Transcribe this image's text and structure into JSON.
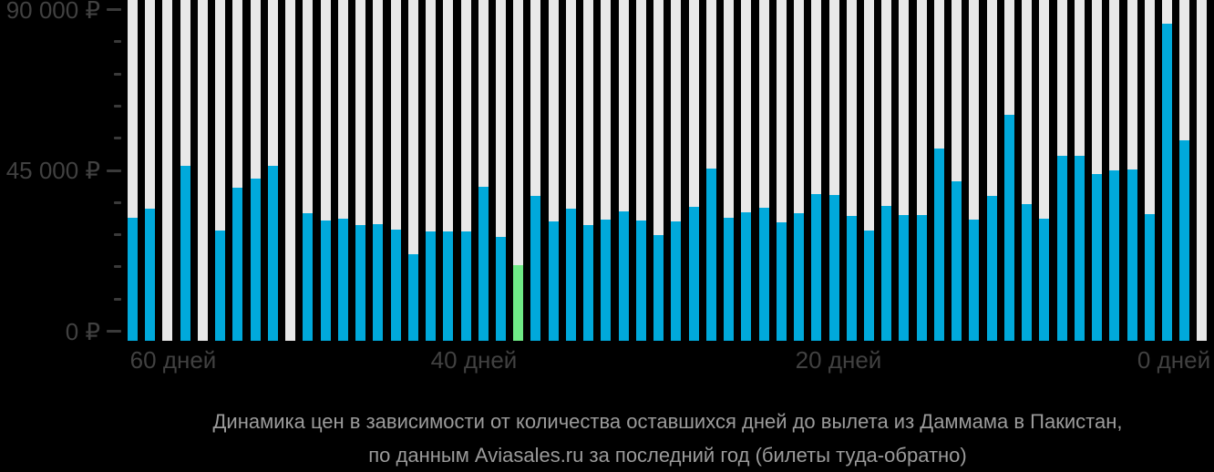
{
  "chart_data": {
    "type": "bar",
    "title": "Динамика цен в зависимости от количества оставшихся дней до вылета из Даммама в Пакистан,",
    "subtitle": "по данным Aviasales.ru за последний год (билеты туда-обратно)",
    "x_tick_labels": [
      "60 дней",
      "40 дней",
      "20 дней",
      "0 дней"
    ],
    "y_tick_labels": [
      "0 ₽",
      "45 000 ₽",
      "90 000 ₽"
    ],
    "ylim": [
      0,
      90000
    ],
    "y_minor_step": 9000,
    "grid": "off",
    "legend": "none",
    "currency": "₽",
    "values": [
      31700,
      34400,
      null,
      46400,
      null,
      28100,
      40200,
      42800,
      46400,
      null,
      33000,
      31100,
      31500,
      29700,
      30000,
      28400,
      21600,
      27800,
      27900,
      27900,
      40400,
      26400,
      18500,
      37900,
      30800,
      34200,
      29800,
      31300,
      33500,
      31100,
      26800,
      30800,
      34700,
      45500,
      31700,
      33300,
      34600,
      30400,
      33100,
      38400,
      38000,
      32200,
      28100,
      35000,
      32500,
      32500,
      51200,
      41900,
      31200,
      37900,
      60600,
      35600,
      31400,
      49100,
      49100,
      44000,
      45100,
      45300,
      32800,
      86100,
      53300,
      null
    ],
    "highlight_index": 22,
    "colors": {
      "bar": "#00A9DB",
      "highlight": "#6FEA86",
      "empty_track": "#E8E8E8",
      "background": "#000000",
      "axis_text": "#414141",
      "tick_mark": "#3A3A3A",
      "title_text": "#9B9B9B"
    }
  }
}
